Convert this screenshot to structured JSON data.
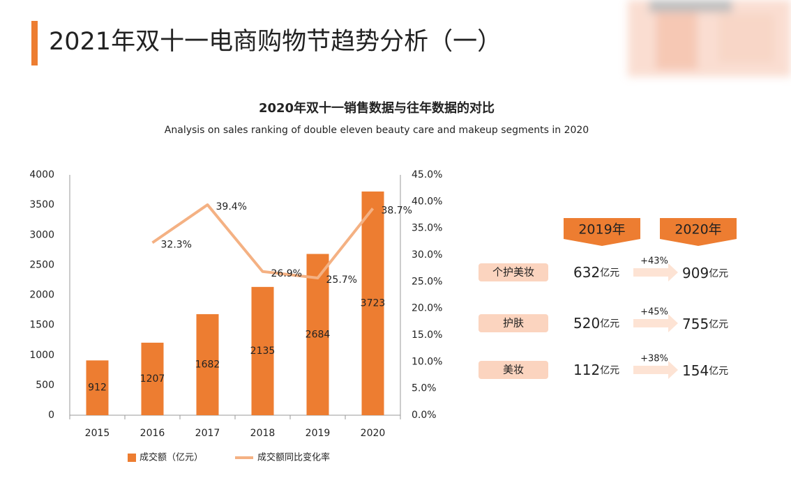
{
  "header": {
    "title": "2021年双十一电商购物节趋势分析（一）"
  },
  "chart_data": {
    "type": "combo",
    "title": "2020年双十一销售数据与往年数据的对比",
    "subtitle": "Analysis on sales ranking of double eleven beauty care and makeup segments in 2020",
    "categories": [
      "2015",
      "2016",
      "2017",
      "2018",
      "2019",
      "2020"
    ],
    "series": [
      {
        "name": "成交额（亿元）",
        "type": "bar",
        "color": "#ed7d31",
        "values": [
          912,
          1207,
          1682,
          2135,
          2684,
          3723
        ]
      },
      {
        "name": "成交额同比变化率",
        "type": "line",
        "axis": "y2",
        "color": "#f4b183",
        "values": [
          null,
          32.3,
          39.4,
          26.9,
          25.7,
          38.7
        ],
        "value_labels": [
          null,
          "32.3%",
          "39.4%",
          "26.9%",
          "25.7%",
          "38.7%"
        ]
      }
    ],
    "ylim": [
      0,
      4000
    ],
    "yticks": [
      0,
      500,
      1000,
      1500,
      2000,
      2500,
      3000,
      3500,
      4000
    ],
    "y2lim": [
      0,
      45
    ],
    "y2ticks": [
      {
        "value": 0,
        "label": "0.0%"
      },
      {
        "value": 5,
        "label": "5.0%"
      },
      {
        "value": 10,
        "label": "10.0%"
      },
      {
        "value": 15,
        "label": "15.0%"
      },
      {
        "value": 20,
        "label": "20.0%"
      },
      {
        "value": 25,
        "label": "25.0%"
      },
      {
        "value": 30,
        "label": "30.0%"
      },
      {
        "value": 35,
        "label": "35.0%"
      },
      {
        "value": 40,
        "label": "40.0%"
      },
      {
        "value": 45,
        "label": "45.0%"
      }
    ],
    "grid": false,
    "legend": "bottom"
  },
  "comparison": {
    "years": [
      "2019年",
      "2020年"
    ],
    "unit": "亿元",
    "rows": [
      {
        "label": "个护美妆",
        "from": "632",
        "to": "909",
        "change": "+43%"
      },
      {
        "label": "护肤",
        "from": "520",
        "to": "755",
        "change": "+45%"
      },
      {
        "label": "美妆",
        "from": "112",
        "to": "154",
        "change": "+38%"
      }
    ]
  }
}
